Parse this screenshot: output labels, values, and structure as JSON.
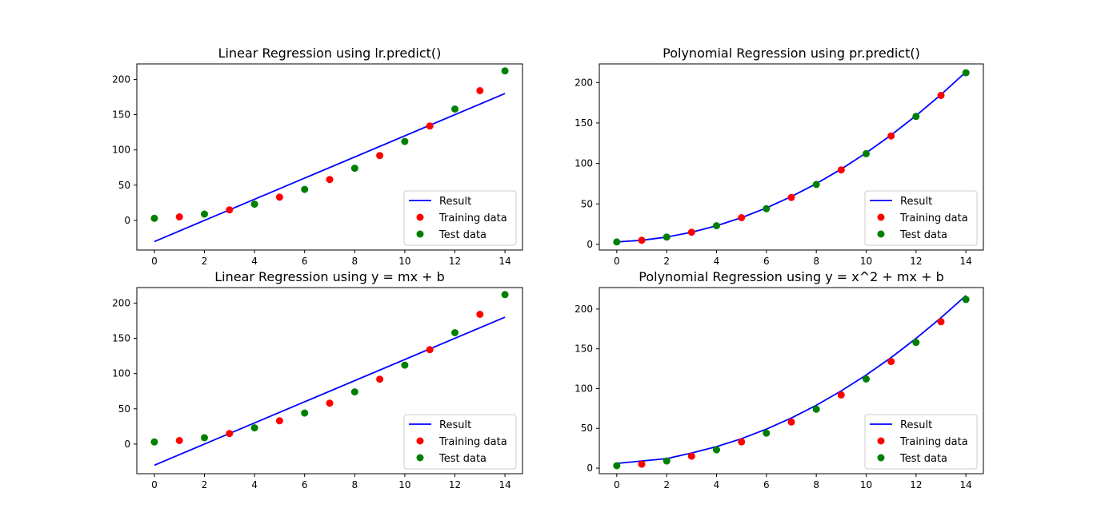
{
  "chart_data": [
    {
      "type": "scatter",
      "title": "Linear Regression using lr.predict()",
      "xlabel": "",
      "ylabel": "",
      "xlim": [
        -0.7,
        14.7
      ],
      "ylim": [
        -42,
        222
      ],
      "xticks": [
        0,
        2,
        4,
        6,
        8,
        10,
        12,
        14
      ],
      "yticks": [
        0,
        50,
        100,
        150,
        200
      ],
      "grid": false,
      "legend_position": "lower-right",
      "series": [
        {
          "name": "Result",
          "kind": "line",
          "color": "#0000ff",
          "x": [
            0,
            14
          ],
          "y": [
            -30,
            180
          ]
        },
        {
          "name": "Training data",
          "kind": "scatter",
          "color": "#ff0000",
          "x": [
            1,
            3,
            5,
            7,
            9,
            11,
            13
          ],
          "y": [
            5,
            15,
            33,
            58,
            92,
            134,
            184
          ]
        },
        {
          "name": "Test data",
          "kind": "scatter",
          "color": "#008000",
          "x": [
            0,
            2,
            4,
            6,
            8,
            10,
            12,
            14
          ],
          "y": [
            3,
            9,
            23,
            44,
            74,
            112,
            158,
            212
          ]
        }
      ]
    },
    {
      "type": "scatter",
      "title": "Polynomial Regression using pr.predict()",
      "xlabel": "",
      "ylabel": "",
      "xlim": [
        -0.7,
        14.7
      ],
      "ylim": [
        -7,
        223
      ],
      "xticks": [
        0,
        2,
        4,
        6,
        8,
        10,
        12,
        14
      ],
      "yticks": [
        0,
        50,
        100,
        150,
        200
      ],
      "grid": false,
      "legend_position": "lower-right",
      "series": [
        {
          "name": "Result",
          "kind": "line",
          "color": "#0000ff",
          "x": [
            0,
            1,
            2,
            3,
            4,
            5,
            6,
            7,
            8,
            9,
            10,
            11,
            12,
            13,
            14
          ],
          "y": [
            3,
            5,
            9,
            15,
            23,
            33,
            45,
            59,
            75,
            93,
            113,
            135,
            159,
            185,
            213
          ]
        },
        {
          "name": "Training data",
          "kind": "scatter",
          "color": "#ff0000",
          "x": [
            1,
            3,
            5,
            7,
            9,
            11,
            13
          ],
          "y": [
            5,
            15,
            33,
            58,
            92,
            134,
            184
          ]
        },
        {
          "name": "Test data",
          "kind": "scatter",
          "color": "#008000",
          "x": [
            0,
            2,
            4,
            6,
            8,
            10,
            12,
            14
          ],
          "y": [
            3,
            9,
            23,
            44,
            74,
            112,
            158,
            212
          ]
        }
      ]
    },
    {
      "type": "scatter",
      "title": "Linear Regression using y = mx + b",
      "xlabel": "",
      "ylabel": "",
      "xlim": [
        -0.7,
        14.7
      ],
      "ylim": [
        -42,
        222
      ],
      "xticks": [
        0,
        2,
        4,
        6,
        8,
        10,
        12,
        14
      ],
      "yticks": [
        0,
        50,
        100,
        150,
        200
      ],
      "grid": false,
      "legend_position": "lower-right",
      "series": [
        {
          "name": "Result",
          "kind": "line",
          "color": "#0000ff",
          "x": [
            0,
            14
          ],
          "y": [
            -30,
            180
          ]
        },
        {
          "name": "Training data",
          "kind": "scatter",
          "color": "#ff0000",
          "x": [
            1,
            3,
            5,
            7,
            9,
            11,
            13
          ],
          "y": [
            5,
            15,
            33,
            58,
            92,
            134,
            184
          ]
        },
        {
          "name": "Test data",
          "kind": "scatter",
          "color": "#008000",
          "x": [
            0,
            2,
            4,
            6,
            8,
            10,
            12,
            14
          ],
          "y": [
            3,
            9,
            23,
            44,
            74,
            112,
            158,
            212
          ]
        }
      ]
    },
    {
      "type": "scatter",
      "title": "Polynomial Regression using y = x^2 + mx + b",
      "xlabel": "",
      "ylabel": "",
      "xlim": [
        -0.7,
        14.7
      ],
      "ylim": [
        -7,
        227
      ],
      "xticks": [
        0,
        2,
        4,
        6,
        8,
        10,
        12,
        14
      ],
      "yticks": [
        0,
        50,
        100,
        150,
        200
      ],
      "grid": false,
      "legend_position": "lower-right",
      "series": [
        {
          "name": "Result",
          "kind": "line",
          "color": "#0000ff",
          "x": [
            0,
            1,
            2,
            3,
            4,
            5,
            6,
            7,
            8,
            9,
            10,
            11,
            12,
            13,
            14
          ],
          "y": [
            6,
            9,
            12,
            19,
            27,
            37,
            49,
            63,
            79,
            97,
            117,
            139,
            163,
            189,
            217
          ]
        },
        {
          "name": "Training data",
          "kind": "scatter",
          "color": "#ff0000",
          "x": [
            1,
            3,
            5,
            7,
            9,
            11,
            13
          ],
          "y": [
            5,
            15,
            33,
            58,
            92,
            134,
            184
          ]
        },
        {
          "name": "Test data",
          "kind": "scatter",
          "color": "#008000",
          "x": [
            0,
            2,
            4,
            6,
            8,
            10,
            12,
            14
          ],
          "y": [
            3,
            9,
            23,
            44,
            74,
            112,
            158,
            212
          ]
        }
      ]
    }
  ]
}
